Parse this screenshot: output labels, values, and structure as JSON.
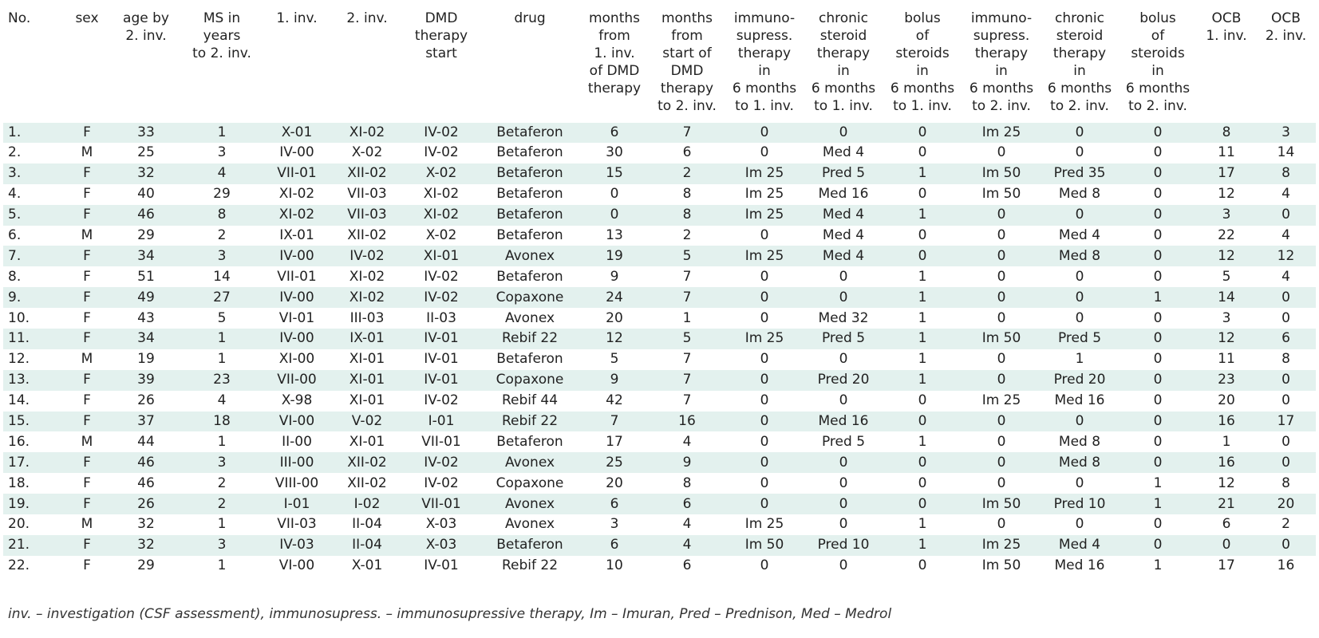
{
  "table": {
    "columns": [
      {
        "key": "no",
        "lines": [
          "No."
        ]
      },
      {
        "key": "sex",
        "lines": [
          "sex"
        ]
      },
      {
        "key": "age",
        "lines": [
          "age by",
          "2. inv."
        ]
      },
      {
        "key": "ms_years",
        "lines": [
          "MS in",
          "years",
          "to 2. inv."
        ]
      },
      {
        "key": "inv1",
        "lines": [
          "1. inv."
        ]
      },
      {
        "key": "inv2",
        "lines": [
          "2. inv."
        ]
      },
      {
        "key": "dmd_start",
        "lines": [
          "DMD",
          "therapy",
          "start"
        ]
      },
      {
        "key": "drug",
        "lines": [
          "drug"
        ]
      },
      {
        "key": "months_from_inv1",
        "lines": [
          "months",
          "from",
          "1. inv.",
          "of DMD",
          "therapy"
        ]
      },
      {
        "key": "months_from_start",
        "lines": [
          "months",
          "from",
          "start of",
          "DMD",
          "therapy",
          "to 2. inv."
        ]
      },
      {
        "key": "immuno_inv1",
        "lines": [
          "immuno-",
          "supress.",
          "therapy",
          "in",
          "6 months",
          "to 1. inv."
        ]
      },
      {
        "key": "steroid_inv1",
        "lines": [
          "chronic",
          "steroid",
          "therapy",
          "in",
          "6 months",
          "to 1. inv."
        ]
      },
      {
        "key": "bolus_inv1",
        "lines": [
          "bolus",
          "of",
          "steroids",
          "in",
          "6 months",
          "to 1. inv."
        ]
      },
      {
        "key": "immuno_inv2",
        "lines": [
          "immuno-",
          "supress.",
          "therapy",
          "in",
          "6 months",
          "to 2. inv."
        ]
      },
      {
        "key": "steroid_inv2",
        "lines": [
          "chronic",
          "steroid",
          "therapy",
          "in",
          "6 months",
          "to 2. inv."
        ]
      },
      {
        "key": "bolus_inv2",
        "lines": [
          "bolus",
          "of",
          "steroids",
          "in",
          "6 months",
          "to 2. inv."
        ]
      },
      {
        "key": "ocb1",
        "lines": [
          "OCB",
          "1. inv."
        ]
      },
      {
        "key": "ocb2",
        "lines": [
          "OCB",
          "2. inv."
        ]
      }
    ],
    "rows": [
      [
        "1.",
        "F",
        "33",
        "1",
        "X-01",
        "XI-02",
        "IV-02",
        "Betaferon",
        "6",
        "7",
        "0",
        "0",
        "0",
        "Im 25",
        "0",
        "0",
        "8",
        "3"
      ],
      [
        "2.",
        "M",
        "25",
        "3",
        "IV-00",
        "X-02",
        "IV-02",
        "Betaferon",
        "30",
        "6",
        "0",
        "Med 4",
        "0",
        "0",
        "0",
        "0",
        "11",
        "14"
      ],
      [
        "3.",
        "F",
        "32",
        "4",
        "VII-01",
        "XII-02",
        "X-02",
        "Betaferon",
        "15",
        "2",
        "Im 25",
        "Pred 5",
        "1",
        "Im 50",
        "Pred 35",
        "0",
        "17",
        "8"
      ],
      [
        "4.",
        "F",
        "40",
        "29",
        "XI-02",
        "VII-03",
        "XI-02",
        "Betaferon",
        "0",
        "8",
        "Im 25",
        "Med 16",
        "0",
        "Im 50",
        "Med 8",
        "0",
        "12",
        "4"
      ],
      [
        "5.",
        "F",
        "46",
        "8",
        "XI-02",
        "VII-03",
        "XI-02",
        "Betaferon",
        "0",
        "8",
        "Im 25",
        "Med 4",
        "1",
        "0",
        "0",
        "0",
        "3",
        "0"
      ],
      [
        "6.",
        "M",
        "29",
        "2",
        "IX-01",
        "XII-02",
        "X-02",
        "Betaferon",
        "13",
        "2",
        "0",
        "Med 4",
        "0",
        "0",
        "Med 4",
        "0",
        "22",
        "4"
      ],
      [
        "7.",
        "F",
        "34",
        "3",
        "IV-00",
        "IV-02",
        "XI-01",
        "Avonex",
        "19",
        "5",
        "Im 25",
        "Med 4",
        "0",
        "0",
        "Med 8",
        "0",
        "12",
        "12"
      ],
      [
        "8.",
        "F",
        "51",
        "14",
        "VII-01",
        "XI-02",
        "IV-02",
        "Betaferon",
        "9",
        "7",
        "0",
        "0",
        "1",
        "0",
        "0",
        "0",
        "5",
        "4"
      ],
      [
        "9.",
        "F",
        "49",
        "27",
        "IV-00",
        "XI-02",
        "IV-02",
        "Copaxone",
        "24",
        "7",
        "0",
        "0",
        "1",
        "0",
        "0",
        "1",
        "14",
        "0"
      ],
      [
        "10.",
        "F",
        "43",
        "5",
        "VI-01",
        "III-03",
        "II-03",
        "Avonex",
        "20",
        "1",
        "0",
        "Med 32",
        "1",
        "0",
        "0",
        "0",
        "3",
        "0"
      ],
      [
        "11.",
        "F",
        "34",
        "1",
        "IV-00",
        "IX-01",
        "IV-01",
        "Rebif 22",
        "12",
        "5",
        "Im 25",
        "Pred 5",
        "1",
        "Im 50",
        "Pred 5",
        "0",
        "12",
        "6"
      ],
      [
        "12.",
        "M",
        "19",
        "1",
        "XI-00",
        "XI-01",
        "IV-01",
        "Betaferon",
        "5",
        "7",
        "0",
        "0",
        "1",
        "0",
        "1",
        "0",
        "11",
        "8"
      ],
      [
        "13.",
        "F",
        "39",
        "23",
        "VII-00",
        "XI-01",
        "IV-01",
        "Copaxone",
        "9",
        "7",
        "0",
        "Pred 20",
        "1",
        "0",
        "Pred 20",
        "0",
        "23",
        "0"
      ],
      [
        "14.",
        "F",
        "26",
        "4",
        "X-98",
        "XI-01",
        "IV-02",
        "Rebif 44",
        "42",
        "7",
        "0",
        "0",
        "0",
        "Im 25",
        "Med 16",
        "0",
        "20",
        "0"
      ],
      [
        "15.",
        "F",
        "37",
        "18",
        "VI-00",
        "V-02",
        "I-01",
        "Rebif 22",
        "7",
        "16",
        "0",
        "Med 16",
        "0",
        "0",
        "0",
        "0",
        "16",
        "17"
      ],
      [
        "16.",
        "M",
        "44",
        "1",
        "II-00",
        "XI-01",
        "VII-01",
        "Betaferon",
        "17",
        "4",
        "0",
        "Pred 5",
        "1",
        "0",
        "Med 8",
        "0",
        "1",
        "0"
      ],
      [
        "17.",
        "F",
        "46",
        "3",
        "III-00",
        "XII-02",
        "IV-02",
        "Avonex",
        "25",
        "9",
        "0",
        "0",
        "0",
        "0",
        "Med 8",
        "0",
        "16",
        "0"
      ],
      [
        "18.",
        "F",
        "46",
        "2",
        "VIII-00",
        "XII-02",
        "IV-02",
        "Copaxone",
        "20",
        "8",
        "0",
        "0",
        "0",
        "0",
        "0",
        "1",
        "12",
        "8"
      ],
      [
        "19.",
        "F",
        "26",
        "2",
        "I-01",
        "I-02",
        "VII-01",
        "Avonex",
        "6",
        "6",
        "0",
        "0",
        "0",
        "Im 50",
        "Pred 10",
        "1",
        "21",
        "20"
      ],
      [
        "20.",
        "M",
        "32",
        "1",
        "VII-03",
        "II-04",
        "X-03",
        "Avonex",
        "3",
        "4",
        "Im 25",
        "0",
        "1",
        "0",
        "0",
        "0",
        "6",
        "2"
      ],
      [
        "21.",
        "F",
        "32",
        "3",
        "IV-03",
        "II-04",
        "X-03",
        "Betaferon",
        "6",
        "4",
        "Im 50",
        "Pred 10",
        "1",
        "Im 25",
        "Med 4",
        "0",
        "0",
        "0"
      ],
      [
        "22.",
        "F",
        "29",
        "1",
        "VI-00",
        "X-01",
        "IV-01",
        "Rebif 22",
        "10",
        "6",
        "0",
        "0",
        "0",
        "Im 50",
        "Med 16",
        "1",
        "17",
        "16"
      ]
    ]
  },
  "footnote": "inv. – investigation (CSF assessment), immunosupress. – immunosupressive therapy, Im – Imuran, Pred – Prednison, Med – Medrol"
}
